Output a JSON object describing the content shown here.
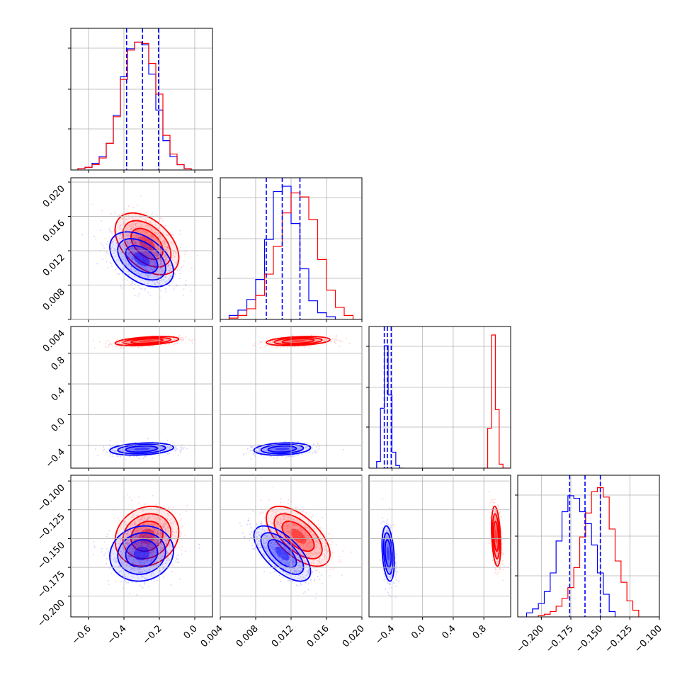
{
  "chart_data": {
    "type": "corner",
    "parameters": [
      "p1",
      "p2",
      "p3",
      "p4"
    ],
    "colors": {
      "series_a": "#0000ff",
      "series_b": "#ff0000"
    },
    "grid": true,
    "axes": {
      "p1": {
        "lim": [
          -0.7,
          0.1
        ],
        "ticks": [
          -0.6,
          -0.4,
          -0.2,
          0.0
        ],
        "tick_labels": [
          "−0.6",
          "−0.4",
          "−0.2",
          "0.0"
        ]
      },
      "p2": {
        "lim": [
          0.004,
          0.02
        ],
        "ticks": [
          0.004,
          0.008,
          0.012,
          0.016,
          0.02
        ],
        "tick_labels": [
          "0.004",
          "0.008",
          "0.012",
          "0.016",
          "0.020"
        ]
      },
      "p3": {
        "lim": [
          -0.7,
          1.15
        ],
        "ticks": [
          -0.4,
          0.0,
          0.4,
          0.8
        ],
        "tick_labels": [
          "−0.4",
          "0.0",
          "0.4",
          "0.8"
        ]
      },
      "p4": {
        "lim": [
          -0.22,
          -0.1
        ],
        "ticks": [
          -0.2,
          -0.175,
          -0.15,
          -0.125,
          -0.1
        ],
        "tick_labels": [
          "−0.200",
          "−0.175",
          "−0.150",
          "−0.125",
          "−0.100"
        ]
      }
    },
    "left_tick_labels": {
      "p2": [
        "0.008",
        "0.012",
        "0.016",
        "0.020"
      ],
      "p3_ticks": [
        -0.4,
        0.0,
        0.4,
        0.8
      ],
      "p3": [
        "−0.4",
        "0.0",
        "0.4",
        "0.8"
      ],
      "p3_top_label": "0.004",
      "p4": [
        "−0.100",
        "−0.125",
        "−0.150",
        "−0.175",
        "−0.200"
      ],
      "p4_ticks": [
        -0.1,
        -0.125,
        -0.15,
        -0.175,
        -0.2
      ]
    },
    "series": [
      {
        "name": "",
        "color": "#0000ff",
        "mean": [
          -0.3,
          0.011,
          -0.45,
          -0.163
        ],
        "std": [
          0.09,
          0.0016,
          0.04,
          0.012
        ],
        "quantiles": {
          "p1": [
            -0.385,
            -0.295,
            -0.205
          ],
          "p2": [
            0.0092,
            0.011,
            0.013
          ],
          "p3": [
            -0.5,
            -0.46,
            -0.41
          ],
          "p4": [
            -0.176,
            -0.163,
            -0.15
          ]
        },
        "histograms": {
          "p1": {
            "bins": [
              -0.66,
              -0.62,
              -0.58,
              -0.54,
              -0.5,
              -0.46,
              -0.42,
              -0.38,
              -0.34,
              -0.3,
              -0.26,
              -0.22,
              -0.18,
              -0.14,
              -0.1,
              -0.06,
              -0.02
            ],
            "counts": [
              1,
              2,
              5,
              10,
              20,
              41,
              70,
              91,
              96,
              94,
              72,
              45,
              22,
              10,
              4,
              1
            ]
          },
          "p2": {
            "bins": [
              0.005,
              0.006,
              0.007,
              0.008,
              0.009,
              0.01,
              0.011,
              0.012,
              0.013,
              0.014,
              0.015,
              0.016,
              0.017
            ],
            "counts": [
              3,
              7,
              15,
              30,
              60,
              96,
              100,
              72,
              38,
              14,
              5,
              2
            ]
          },
          "p3": {
            "bins": [
              -0.6,
              -0.55,
              -0.5,
              -0.45,
              -0.4,
              -0.35,
              -0.3,
              -0.25
            ],
            "counts": [
              5,
              45,
              92,
              55,
              12,
              2,
              0
            ]
          },
          "p4": {
            "bins": [
              -0.2125,
              -0.2075,
              -0.2025,
              -0.1975,
              -0.1925,
              -0.1875,
              -0.1825,
              -0.1775,
              -0.1725,
              -0.1675,
              -0.1625,
              -0.1575,
              -0.1525,
              -0.1475,
              -0.1425,
              -0.1375
            ],
            "counts": [
              3,
              6,
              10,
              19,
              33,
              57,
              79,
              91,
              89,
              79,
              70,
              54,
              33,
              17,
              4
            ]
          }
        }
      },
      {
        "name": "",
        "color": "#ff0000",
        "mean": [
          -0.27,
          0.0128,
          0.96,
          -0.148
        ],
        "std": [
          0.09,
          0.0018,
          0.03,
          0.013
        ],
        "quantiles": {},
        "histograms": {
          "p1": {
            "bins": [
              -0.66,
              -0.62,
              -0.58,
              -0.54,
              -0.5,
              -0.46,
              -0.42,
              -0.38,
              -0.34,
              -0.3,
              -0.26,
              -0.22,
              -0.18,
              -0.14,
              -0.1,
              -0.06,
              -0.02
            ],
            "counts": [
              1,
              2,
              4,
              9,
              20,
              40,
              68,
              90,
              96,
              95,
              80,
              57,
              26,
              12,
              4,
              1
            ]
          },
          "p2": {
            "bins": [
              0.005,
              0.006,
              0.007,
              0.008,
              0.009,
              0.01,
              0.011,
              0.012,
              0.013,
              0.014,
              0.015,
              0.016,
              0.017,
              0.018,
              0.019
            ],
            "counts": [
              1,
              3,
              8,
              18,
              34,
              55,
              80,
              95,
              92,
              75,
              45,
              22,
              9,
              3
            ]
          },
          "p3": {
            "bins": [
              0.8,
              0.85,
              0.9,
              0.95,
              1.0,
              1.05,
              1.1,
              1.15
            ],
            "counts": [
              0,
              30,
              100,
              44,
              3,
              0,
              0
            ]
          },
          "p4": {
            "bins": [
              -0.2025,
              -0.1975,
              -0.1925,
              -0.1875,
              -0.1825,
              -0.1775,
              -0.1725,
              -0.1675,
              -0.1625,
              -0.1575,
              -0.1525,
              -0.1475,
              -0.1425,
              -0.1375,
              -0.1325,
              -0.1275,
              -0.1225,
              -0.1175
            ],
            "counts": [
              1,
              2,
              4,
              8,
              14,
              22,
              37,
              60,
              78,
              94,
              97,
              90,
              66,
              42,
              26,
              12,
              5
            ]
          }
        }
      }
    ]
  }
}
